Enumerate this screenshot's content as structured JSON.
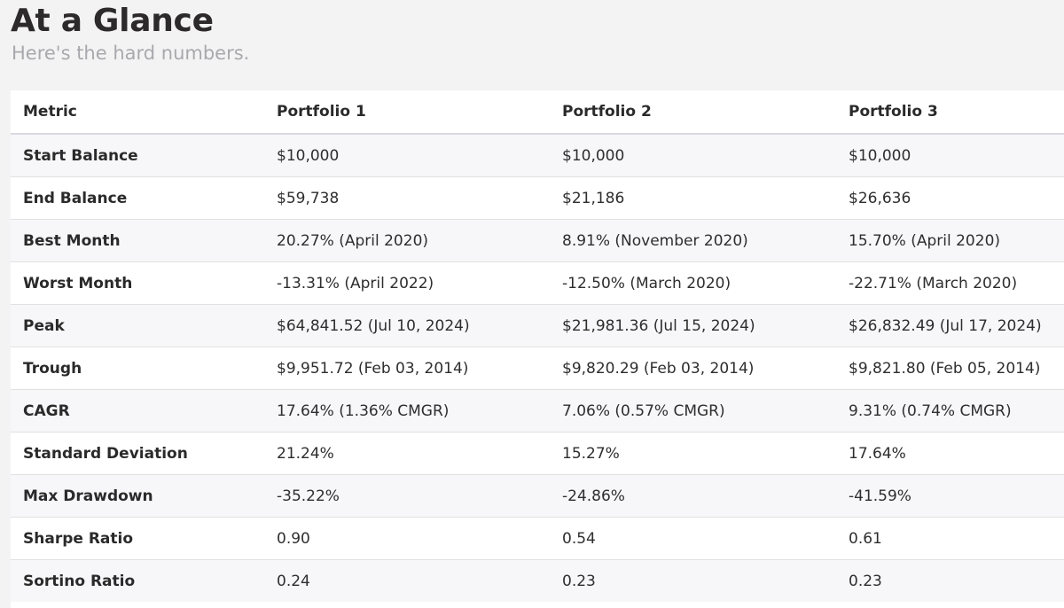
{
  "header": {
    "title": "At a Glance",
    "subtitle": "Here's the hard numbers."
  },
  "table": {
    "columns": [
      "Metric",
      "Portfolio 1",
      "Portfolio 2",
      "Portfolio 3"
    ],
    "rows": [
      [
        "Start Balance",
        "$10,000",
        "$10,000",
        "$10,000"
      ],
      [
        "End Balance",
        "$59,738",
        "$21,186",
        "$26,636"
      ],
      [
        "Best Month",
        "20.27% (April 2020)",
        "8.91% (November 2020)",
        "15.70% (April 2020)"
      ],
      [
        "Worst Month",
        "-13.31% (April 2022)",
        "-12.50% (March 2020)",
        "-22.71% (March 2020)"
      ],
      [
        "Peak",
        "$64,841.52 (Jul 10, 2024)",
        "$21,981.36 (Jul 15, 2024)",
        "$26,832.49 (Jul 17, 2024)"
      ],
      [
        "Trough",
        "$9,951.72 (Feb 03, 2014)",
        "$9,820.29 (Feb 03, 2014)",
        "$9,821.80 (Feb 05, 2014)"
      ],
      [
        "CAGR",
        "17.64% (1.36% CMGR)",
        "7.06% (0.57% CMGR)",
        "9.31% (0.74% CMGR)"
      ],
      [
        "Standard Deviation",
        "21.24%",
        "15.27%",
        "17.64%"
      ],
      [
        "Max Drawdown",
        "-35.22%",
        "-24.86%",
        "-41.59%"
      ],
      [
        "Sharpe Ratio",
        "0.90",
        "0.54",
        "0.61"
      ],
      [
        "Sortino Ratio",
        "0.24",
        "0.23",
        "0.23"
      ]
    ]
  },
  "colors": {
    "page_background": "#f3f3f4",
    "title": "#2d2a2b",
    "subtitle": "#a9a9ad",
    "row_stripe": "#f7f7f9",
    "row_border": "#e1e1e1",
    "header_border": "#d9d9e2"
  }
}
